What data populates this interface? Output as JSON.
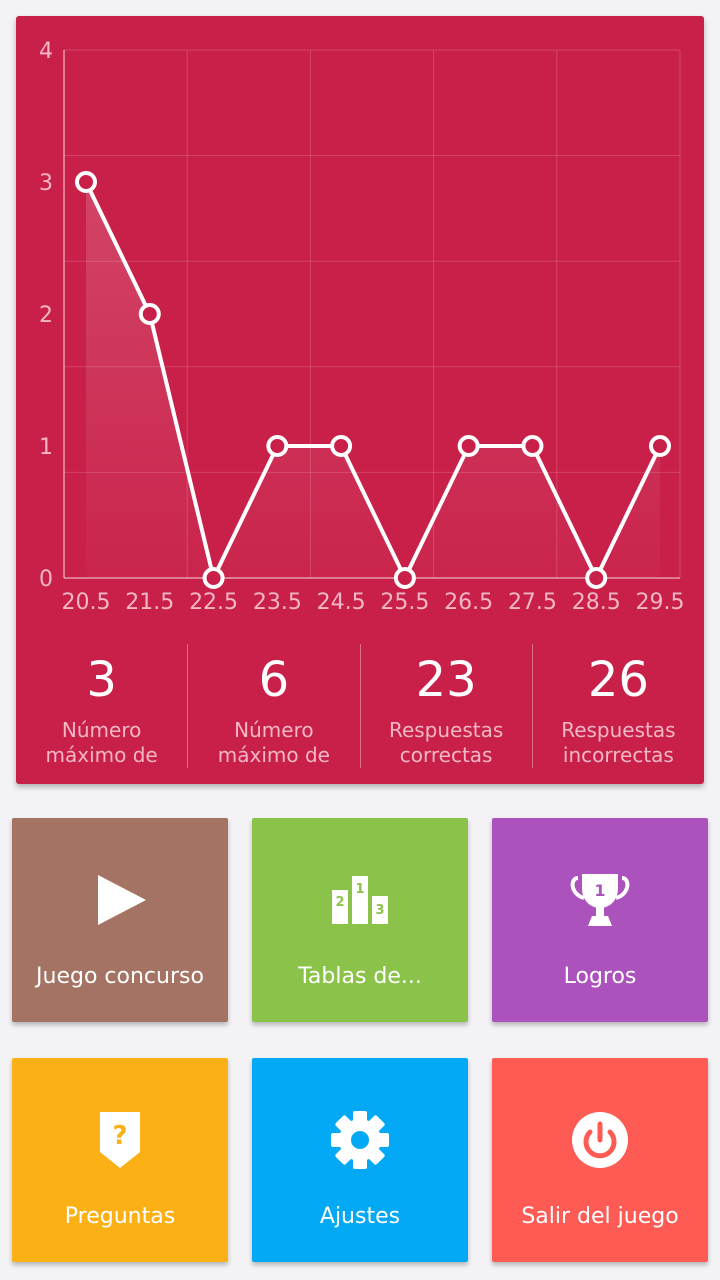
{
  "colors": {
    "card": "#c92049",
    "tile_quiz": "#a47363",
    "tile_rankings": "#8bc34a",
    "tile_achievements": "#ab52bc",
    "tile_questions": "#fbb016",
    "tile_settings": "#03a9f4",
    "tile_exit": "#fe5b55"
  },
  "chart_data": {
    "type": "line",
    "x": [
      20.5,
      21.5,
      22.5,
      23.5,
      24.5,
      25.5,
      26.5,
      27.5,
      28.5,
      29.5
    ],
    "series": [
      {
        "values": [
          3,
          2,
          0,
          1,
          1,
          0,
          1,
          1,
          0,
          1
        ]
      }
    ],
    "x_tick_labels": [
      "20.5",
      "21.5",
      "22.5",
      "23.5",
      "24.5",
      "25.5",
      "26.5",
      "27.5",
      "28.5",
      "29.5"
    ],
    "y_tick_labels": [
      "0",
      "1",
      "2",
      "3",
      "4"
    ],
    "ylim": [
      0,
      4
    ],
    "grid": true
  },
  "stats": [
    {
      "value": "3",
      "label": "Número\nmáximo de"
    },
    {
      "value": "6",
      "label": "Número\nmáximo de"
    },
    {
      "value": "23",
      "label": "Respuestas\ncorrectas"
    },
    {
      "value": "26",
      "label": "Respuestas\nincorrectas"
    }
  ],
  "menu": {
    "quiz": {
      "label": "Juego concurso",
      "icon": "play-icon"
    },
    "rankings": {
      "label": "Tablas de...",
      "icon": "podium-icon",
      "podium_numbers": [
        "2",
        "1",
        "3"
      ]
    },
    "achievements": {
      "label": "Logros",
      "icon": "trophy-icon",
      "trophy_number": "1"
    },
    "questions": {
      "label": "Preguntas",
      "icon": "question-badge-icon",
      "badge_glyph": "?"
    },
    "settings": {
      "label": "Ajustes",
      "icon": "gear-icon"
    },
    "exit": {
      "label": "Salir del juego",
      "icon": "power-icon"
    }
  }
}
